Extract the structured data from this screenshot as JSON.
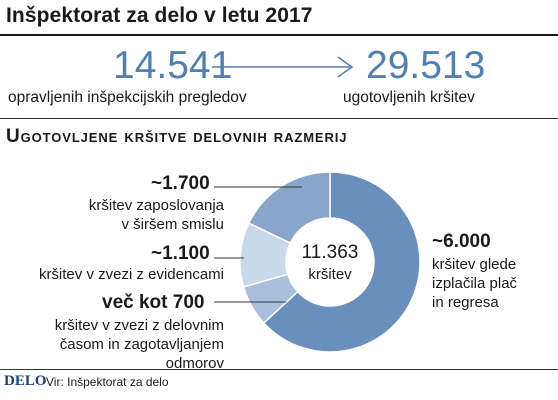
{
  "header": {
    "title": "Inšpektorat za delo v letu 2017"
  },
  "stats": {
    "inspections_value": "14.541",
    "inspections_label": "opravljenih inšpekcijskih pregledov",
    "violations_value": "29.513",
    "violations_label": "ugotovljenih kršitev"
  },
  "section_title": "Ugotovljene kršitve delovnih razmerij",
  "center": {
    "value": "11.363",
    "label": "kršitev"
  },
  "labels": {
    "employment_value": "~1.700",
    "employment_text": [
      "kršitev zaposlovanja",
      "v širšem smislu"
    ],
    "records_value": "~1.100",
    "records_text": [
      "kršitev v zvezi z evidencami"
    ],
    "working_time_value": "več kot 700",
    "working_time_text": [
      "kršitev v zvezi z delovnim",
      "časom in zagotavljanjem",
      "odmorov"
    ],
    "pay_value": "~6.000",
    "pay_text": [
      "kršitev glede",
      "izplačila plač",
      "in regresa"
    ]
  },
  "footer": {
    "logo": "DELO",
    "source": "Vir: Inšpektorat za delo"
  },
  "colors": {
    "pay": "#6a8fbd",
    "working_time": "#a9bfdc",
    "records": "#c9d8ea",
    "employment": "#88a6cc",
    "accent": "#4f7fb6"
  },
  "chart_data": {
    "type": "pie",
    "title": "Ugotovljene kršitve delovnih razmerij",
    "total": 11363,
    "categories": [
      "kršitev glede izplačila plač in regresa",
      "kršitev v zvezi z delovnim časom in zagotavljanjem odmorov",
      "kršitev v zvezi z evidencami",
      "kršitev zaposlovanja v širšem smislu"
    ],
    "values": [
      6000,
      700,
      1100,
      1700
    ],
    "donut": true
  }
}
